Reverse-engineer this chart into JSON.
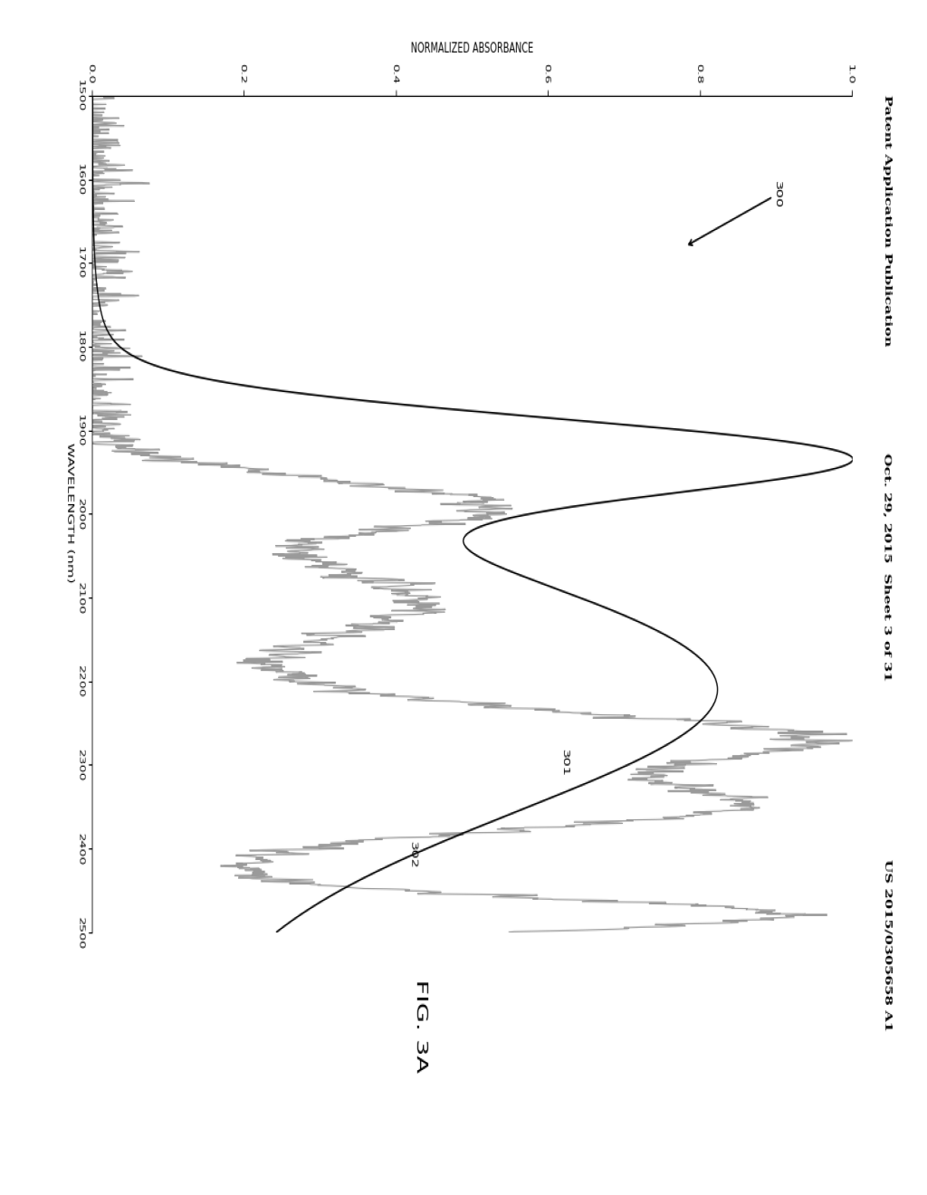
{
  "title": "FIG. 3A",
  "xlabel": "WAVELENGTH (nm)",
  "ylabel": "NORMALIZED ABSORBANCE",
  "xlim": [
    1500,
    2500
  ],
  "ylim": [
    0.0,
    1.0
  ],
  "xticks": [
    1500,
    1600,
    1700,
    1800,
    1900,
    2000,
    2100,
    2200,
    2300,
    2400,
    2500
  ],
  "yticks": [
    0.0,
    0.2,
    0.4,
    0.6,
    0.8,
    1.0
  ],
  "background_color": "#ffffff",
  "curve302_color": "#000000",
  "curve301_color": "#888888",
  "header_left": "Patent Application Publication",
  "header_center": "Oct. 29, 2015  Sheet 3 of 31",
  "header_right": "US 2015/0305658 A1",
  "label_300": "300",
  "label_301": "301",
  "label_302": "302"
}
